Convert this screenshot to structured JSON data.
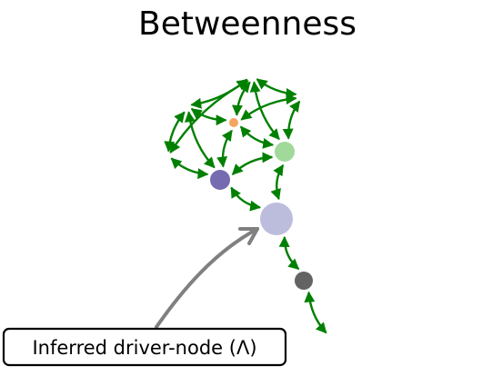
{
  "title": "Betweenness",
  "callout": {
    "label": "Inferred driver-node (Λ)",
    "box_stroke": "#000000",
    "arrow_color": "#808080"
  },
  "edge_color": "#008000",
  "nodes": [
    {
      "id": "n_top",
      "color": "#ffffff"
    },
    {
      "id": "n_topright",
      "color": "#ffffff"
    },
    {
      "id": "n_left",
      "color": "#ffffff"
    },
    {
      "id": "n_farleft",
      "color": "#ffffff"
    },
    {
      "id": "n_orange",
      "color": "#f5a562"
    },
    {
      "id": "n_lightgreen",
      "color": "#a1d99b"
    },
    {
      "id": "n_purple",
      "color": "#756bb1"
    },
    {
      "id": "n_lavender",
      "color": "#bcbddc"
    },
    {
      "id": "n_gray",
      "color": "#636363"
    },
    {
      "id": "n_tail",
      "color": "#ffffff"
    }
  ],
  "edges": [
    [
      "n_left",
      "n_top"
    ],
    [
      "n_top",
      "n_topright"
    ],
    [
      "n_top",
      "n_orange"
    ],
    [
      "n_topright",
      "n_orange"
    ],
    [
      "n_topright",
      "n_lightgreen"
    ],
    [
      "n_left",
      "n_orange"
    ],
    [
      "n_left",
      "n_farleft"
    ],
    [
      "n_farleft",
      "n_purple"
    ],
    [
      "n_top",
      "n_lightgreen"
    ],
    [
      "n_left",
      "n_purple"
    ],
    [
      "n_orange",
      "n_purple"
    ],
    [
      "n_orange",
      "n_lightgreen"
    ],
    [
      "n_lightgreen",
      "n_purple"
    ],
    [
      "n_lightgreen",
      "n_lavender"
    ],
    [
      "n_purple",
      "n_lavender"
    ],
    [
      "n_lavender",
      "n_gray"
    ],
    [
      "n_gray",
      "n_tail"
    ],
    [
      "n_top",
      "n_farleft"
    ]
  ]
}
